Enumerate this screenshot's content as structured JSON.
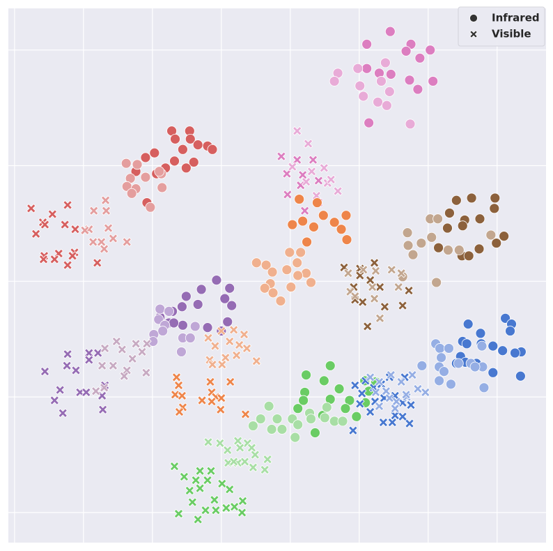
{
  "chart_data": {
    "type": "scatter",
    "xlim": [
      -0.09,
      7.71
    ],
    "ylim": [
      -0.26,
      4.36
    ],
    "xticks": [
      0,
      1,
      2,
      3,
      4,
      5,
      6,
      7
    ],
    "yticks": [
      0,
      1,
      2,
      3,
      4
    ],
    "grid": true,
    "background": "#eaeaf2",
    "legend": {
      "loc": "upper right",
      "color": "#333333",
      "entries": [
        {
          "label": "Infrared",
          "marker": "circle"
        },
        {
          "label": "Visible",
          "marker": "x"
        }
      ]
    },
    "series": [
      {
        "color": "#dc7ec0",
        "marker": "circle",
        "x": [
          5.45,
          5.11,
          5.75,
          6.03,
          5.68,
          5.88,
          5.11,
          5.29,
          5.46,
          5.73,
          6.07,
          5.85,
          5.14
        ],
        "y": [
          4.16,
          4.05,
          4.05,
          4.0,
          3.99,
          3.93,
          3.84,
          3.8,
          3.79,
          3.74,
          3.73,
          3.66,
          3.37
        ]
      },
      {
        "color": "#e8abd7",
        "marker": "circle",
        "x": [
          5.38,
          4.98,
          4.69,
          4.64,
          5.01,
          5.32,
          5.06,
          5.44,
          5.27,
          5.4,
          5.74
        ],
        "y": [
          3.89,
          3.84,
          3.8,
          3.73,
          3.69,
          3.73,
          3.6,
          3.64,
          3.55,
          3.52,
          3.36
        ]
      },
      {
        "color": "#dc7ec0",
        "marker": "x",
        "x": [
          3.87,
          4.1,
          4.33,
          3.95,
          4.18,
          4.41,
          3.96,
          4.21,
          4.41,
          4.15
        ],
        "y": [
          3.08,
          3.05,
          3.05,
          2.93,
          2.92,
          2.87,
          2.75,
          2.61,
          2.68,
          2.83
        ]
      },
      {
        "color": "#e8abd7",
        "marker": "x",
        "x": [
          4.1,
          4.26,
          4.49,
          4.03,
          4.23,
          4.69,
          4.54,
          4.38,
          4.31,
          4.59
        ],
        "y": [
          3.3,
          3.19,
          2.98,
          2.99,
          2.86,
          2.78,
          2.85,
          2.74,
          2.95,
          2.88
        ]
      },
      {
        "color": "#ee854a",
        "marker": "circle",
        "x": [
          4.03,
          4.18,
          4.34,
          4.24,
          4.48,
          4.64,
          4.74,
          4.81,
          4.82,
          4.13,
          4.39
        ],
        "y": [
          2.49,
          2.52,
          2.47,
          2.34,
          2.57,
          2.51,
          2.45,
          2.57,
          2.36,
          2.71,
          2.68
        ]
      },
      {
        "color": "#f0b08e",
        "marker": "circle",
        "x": [
          3.51,
          3.65,
          3.74,
          3.71,
          3.63,
          3.75,
          3.86,
          3.99,
          4.15,
          4.1,
          4.23,
          4.3,
          4.01,
          4.11,
          3.95
        ],
        "y": [
          2.16,
          2.14,
          2.08,
          1.98,
          1.94,
          1.9,
          1.83,
          2.25,
          2.25,
          2.16,
          2.07,
          1.99,
          1.95,
          2.05,
          2.1
        ]
      },
      {
        "color": "#8c613c",
        "marker": "circle",
        "x": [
          6.41,
          6.63,
          6.97,
          6.31,
          6.53,
          6.75,
          6.96,
          7.1,
          6.99,
          6.74,
          6.49,
          6.59,
          6.15,
          6.28,
          6.5
        ],
        "y": [
          2.7,
          2.72,
          2.72,
          2.59,
          2.53,
          2.54,
          2.63,
          2.39,
          2.33,
          2.28,
          2.22,
          2.22,
          2.29,
          2.46,
          2.48
        ]
      },
      {
        "color": "#c2a68f",
        "marker": "circle",
        "x": [
          5.7,
          5.71,
          5.9,
          6.05,
          6.03,
          6.14,
          6.29,
          6.45,
          5.78,
          5.63,
          6.12,
          6.91
        ],
        "y": [
          2.42,
          2.31,
          2.33,
          2.38,
          2.54,
          2.54,
          2.27,
          2.27,
          2.23,
          2.04,
          1.99,
          2.4
        ]
      },
      {
        "color": "#8c613c",
        "marker": "x",
        "x": [
          4.78,
          5.01,
          5.22,
          5.16,
          5.3,
          4.92,
          5.05,
          4.94,
          5.37,
          5.63,
          5.72,
          5.12,
          5.01
        ],
        "y": [
          2.12,
          2.11,
          2.16,
          2.01,
          1.95,
          1.95,
          1.82,
          1.84,
          1.78,
          1.79,
          1.92,
          1.61,
          2.05
        ]
      },
      {
        "color": "#c2a68f",
        "marker": "x",
        "x": [
          4.84,
          5.06,
          5.24,
          5.47,
          5.61,
          4.87,
          5.19,
          5.57,
          5.22,
          5.3,
          4.94
        ],
        "y": [
          2.07,
          2.1,
          2.09,
          2.1,
          2.07,
          1.91,
          1.95,
          1.95,
          1.85,
          1.68,
          1.87
        ]
      },
      {
        "color": "#d65f5f",
        "marker": "circle",
        "x": [
          2.28,
          2.54,
          2.33,
          2.55,
          2.44,
          2.66,
          2.8,
          2.87,
          2.03,
          1.9,
          2.19,
          2.06,
          2.32,
          2.6,
          2.49,
          1.76,
          1.92
        ],
        "y": [
          3.3,
          3.3,
          3.23,
          3.23,
          3.14,
          3.18,
          3.17,
          3.14,
          3.11,
          3.07,
          2.98,
          2.93,
          3.04,
          3.03,
          2.98,
          2.95,
          2.68
        ]
      },
      {
        "color": "#e49e9e",
        "marker": "circle",
        "x": [
          1.62,
          1.78,
          1.68,
          1.9,
          2.13,
          1.63,
          1.76,
          2.14,
          1.7,
          1.97,
          2.1
        ],
        "y": [
          3.02,
          3.01,
          2.89,
          2.9,
          2.93,
          2.82,
          2.8,
          2.81,
          2.76,
          2.64,
          2.95
        ]
      },
      {
        "color": "#d65f5f",
        "marker": "x",
        "x": [
          0.24,
          0.55,
          0.77,
          0.41,
          0.44,
          0.73,
          0.31,
          0.88,
          0.43,
          0.64,
          0.87,
          0.42,
          0.58,
          0.77,
          0.84,
          1.2
        ],
        "y": [
          2.63,
          2.58,
          2.66,
          2.51,
          2.49,
          2.49,
          2.41,
          2.45,
          2.22,
          2.24,
          2.25,
          2.19,
          2.19,
          2.14,
          2.22,
          2.16
        ]
      },
      {
        "color": "#e49e9e",
        "marker": "x",
        "x": [
          1.32,
          1.15,
          1.33,
          1.08,
          1.36,
          1.14,
          1.26,
          1.43,
          1.63,
          1.02,
          1.3
        ],
        "y": [
          2.7,
          2.61,
          2.61,
          2.45,
          2.46,
          2.34,
          2.34,
          2.37,
          2.34,
          2.44,
          2.28
        ]
      },
      {
        "color": "#956cb4",
        "marker": "circle",
        "x": [
          2.93,
          2.71,
          2.49,
          3.12,
          3.05,
          3.15,
          2.43,
          2.66,
          2.29,
          2.24,
          2.44,
          2.8,
          3.0,
          3.09,
          2.11,
          2.31
        ],
        "y": [
          2.01,
          1.93,
          1.87,
          1.94,
          1.85,
          1.79,
          1.78,
          1.8,
          1.74,
          1.64,
          1.62,
          1.6,
          1.57,
          1.65,
          1.69,
          1.64
        ]
      },
      {
        "color": "#bfa7d6",
        "marker": "circle",
        "x": [
          2.11,
          2.24,
          2.09,
          2.02,
          2.18,
          2.44,
          2.55,
          2.62,
          2.42,
          2.01,
          2.15
        ],
        "y": [
          1.76,
          1.74,
          1.67,
          1.54,
          1.62,
          1.51,
          1.51,
          1.61,
          1.39,
          1.48,
          1.57
        ]
      },
      {
        "color": "#956cb4",
        "marker": "x",
        "x": [
          0.77,
          1.08,
          1.21,
          0.89,
          0.76,
          1.08,
          0.44,
          0.66,
          0.95,
          1.04,
          1.27,
          0.58,
          0.7,
          1.28,
          1.31
        ],
        "y": [
          1.37,
          1.38,
          1.38,
          1.23,
          1.27,
          1.32,
          1.22,
          1.06,
          1.04,
          1.04,
          1.01,
          0.97,
          0.86,
          0.89,
          1.1
        ]
      },
      {
        "color": "#c7aac2",
        "marker": "x",
        "x": [
          1.48,
          1.76,
          1.92,
          1.31,
          1.56,
          1.85,
          1.71,
          1.27,
          1.43,
          1.63,
          1.59,
          1.91,
          1.18,
          1.3
        ],
        "y": [
          1.48,
          1.46,
          1.46,
          1.42,
          1.41,
          1.39,
          1.33,
          1.27,
          1.27,
          1.23,
          1.18,
          1.21,
          1.05,
          1.08
        ]
      },
      {
        "color": "#f0b08e",
        "marker": "x",
        "x": [
          2.81,
          3.0,
          3.18,
          3.33,
          2.91,
          3.12,
          3.26,
          3.37,
          3.06,
          3.22,
          3.51,
          2.83,
          2.87,
          3.01
        ],
        "y": [
          1.51,
          1.57,
          1.58,
          1.54,
          1.44,
          1.48,
          1.45,
          1.42,
          1.34,
          1.36,
          1.31,
          1.32,
          1.28,
          1.28
        ]
      },
      {
        "color": "#ee854a",
        "marker": "x",
        "x": [
          2.35,
          2.38,
          2.84,
          3.13,
          2.33,
          2.43,
          2.86,
          2.92,
          2.72,
          2.86,
          3.0,
          2.44,
          2.39,
          2.99,
          3.35
        ],
        "y": [
          1.17,
          1.1,
          1.13,
          1.13,
          1.02,
          1.01,
          1.04,
          1.0,
          0.97,
          0.96,
          0.99,
          0.91,
          0.87,
          0.89,
          0.85
        ]
      },
      {
        "color": "#6acc64",
        "marker": "circle",
        "x": [
          4.58,
          4.23,
          4.49,
          4.21,
          4.71,
          4.19,
          4.11,
          4.58,
          4.86,
          4.8,
          5.08,
          5.24,
          5.14,
          4.36,
          4.96,
          5.09,
          4.47
        ],
        "y": [
          1.27,
          1.19,
          1.14,
          1.04,
          1.07,
          0.97,
          0.9,
          0.98,
          0.97,
          0.9,
          1.14,
          1.13,
          1.05,
          0.69,
          0.83,
          0.95,
          0.84
        ]
      },
      {
        "color": "#a8dea5",
        "marker": "circle",
        "x": [
          3.69,
          3.81,
          3.46,
          3.73,
          3.88,
          4.03,
          4.11,
          4.28,
          4.53,
          4.3,
          4.5,
          4.64,
          4.76,
          4.07,
          3.57
        ],
        "y": [
          0.92,
          0.81,
          0.75,
          0.72,
          0.72,
          0.81,
          0.76,
          0.86,
          0.91,
          0.81,
          0.82,
          0.79,
          0.79,
          0.65,
          0.81
        ]
      },
      {
        "color": "#a8dea5",
        "marker": "x",
        "x": [
          2.81,
          2.98,
          3.24,
          3.38,
          3.09,
          3.27,
          3.44,
          3.1,
          3.24,
          3.34,
          3.49,
          3.67,
          3.63,
          3.46,
          3.18
        ],
        "y": [
          0.61,
          0.6,
          0.62,
          0.6,
          0.54,
          0.56,
          0.56,
          0.43,
          0.43,
          0.44,
          0.5,
          0.46,
          0.37,
          0.39,
          0.44
        ]
      },
      {
        "color": "#6acc64",
        "marker": "x",
        "x": [
          2.32,
          2.69,
          2.85,
          2.46,
          2.63,
          2.8,
          3.01,
          2.54,
          2.69,
          3.12,
          2.9,
          2.58,
          2.77,
          2.92,
          3.07,
          3.19,
          3.31,
          3.3,
          2.38,
          2.66
        ],
        "y": [
          0.4,
          0.36,
          0.36,
          0.31,
          0.28,
          0.28,
          0.25,
          0.19,
          0.21,
          0.2,
          0.11,
          0.09,
          0.02,
          0.02,
          0.04,
          0.05,
          0.1,
          0.0,
          -0.01,
          -0.06
        ]
      },
      {
        "color": "#4878d0",
        "marker": "x",
        "x": [
          4.94,
          5.09,
          5.21,
          5.44,
          5.32,
          5.04,
          5.23,
          5.36,
          5.52,
          5.63,
          5.75,
          5.01,
          5.16,
          5.35,
          5.48,
          5.63,
          5.73,
          4.91,
          5.52,
          5.66
        ],
        "y": [
          1.1,
          1.14,
          1.08,
          1.17,
          1.11,
          1.03,
          0.96,
          0.99,
          1.01,
          0.95,
          0.93,
          0.94,
          0.87,
          0.78,
          0.78,
          0.83,
          0.77,
          0.71,
          0.84,
          1.17
        ]
      },
      {
        "color": "#95aee4",
        "marker": "x",
        "x": [
          5.16,
          5.29,
          5.46,
          5.61,
          5.77,
          5.24,
          5.39,
          5.54,
          5.69,
          5.85,
          5.96,
          5.29,
          5.52,
          5.68,
          5.44
        ],
        "y": [
          1.17,
          1.13,
          1.19,
          1.13,
          1.19,
          1.04,
          1.05,
          0.96,
          1.0,
          1.07,
          1.04,
          0.92,
          0.9,
          1.02,
          0.99
        ]
      },
      {
        "color": "#4878d0",
        "marker": "circle",
        "x": [
          7.12,
          7.21,
          7.19,
          6.58,
          6.76,
          6.5,
          6.56,
          6.77,
          6.94,
          7.35,
          7.26,
          7.08,
          6.47,
          6.54,
          6.7,
          6.94,
          7.34,
          6.41
        ],
        "y": [
          1.68,
          1.63,
          1.57,
          1.63,
          1.55,
          1.48,
          1.46,
          1.46,
          1.44,
          1.39,
          1.38,
          1.4,
          1.35,
          1.3,
          1.29,
          1.21,
          1.18,
          1.29
        ]
      },
      {
        "color": "#95aee4",
        "marker": "circle",
        "x": [
          6.11,
          6.17,
          6.3,
          6.19,
          5.91,
          6.16,
          6.44,
          6.62,
          6.79,
          6.23,
          6.33,
          6.16,
          6.81,
          6.78,
          6.68
        ],
        "y": [
          1.46,
          1.42,
          1.42,
          1.34,
          1.27,
          1.26,
          1.29,
          1.29,
          1.26,
          1.22,
          1.11,
          1.14,
          1.08,
          1.44,
          1.26
        ]
      }
    ]
  }
}
